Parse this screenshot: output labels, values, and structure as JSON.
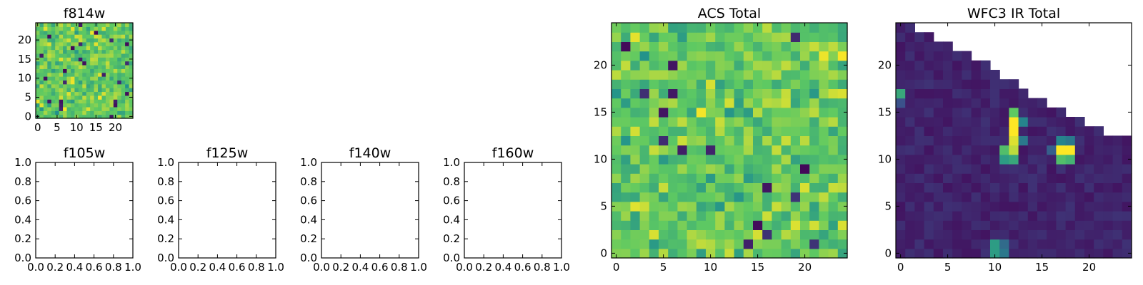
{
  "figure": {
    "colors": {
      "background": "#ffffff",
      "axes": "#000000",
      "viridis": [
        "#440154",
        "#3b528b",
        "#21918c",
        "#5ec962",
        "#fde725"
      ]
    }
  },
  "chart_data": [
    {
      "type": "heatmap",
      "title": "f814w",
      "grid_size": 25,
      "xlim": [
        -0.5,
        24.5
      ],
      "ylim": [
        -0.5,
        24.5
      ],
      "xticks": [
        0,
        5,
        10,
        15,
        20
      ],
      "yticks": [
        0,
        5,
        10,
        15,
        20
      ],
      "xtick_labels": [
        "0",
        "5",
        "10",
        "15",
        "20"
      ],
      "ytick_labels": [
        "0",
        "5",
        "10",
        "15",
        "20"
      ],
      "value_range": [
        0,
        1
      ],
      "pattern": "noise",
      "seed": 11
    },
    {
      "type": "empty",
      "title": "f105w",
      "xlim": [
        0,
        1
      ],
      "ylim": [
        0,
        1
      ],
      "xtick_labels": [
        "0.0",
        "0.2",
        "0.4",
        "0.6",
        "0.8",
        "1.0"
      ],
      "ytick_labels": [
        "0.0",
        "0.2",
        "0.4",
        "0.6",
        "0.8",
        "1.0"
      ]
    },
    {
      "type": "empty",
      "title": "f125w",
      "xlim": [
        0,
        1
      ],
      "ylim": [
        0,
        1
      ],
      "xtick_labels": [
        "0.0",
        "0.2",
        "0.4",
        "0.6",
        "0.8",
        "1.0"
      ],
      "ytick_labels": [
        "0.0",
        "0.2",
        "0.4",
        "0.6",
        "0.8",
        "1.0"
      ]
    },
    {
      "type": "empty",
      "title": "f140w",
      "xlim": [
        0,
        1
      ],
      "ylim": [
        0,
        1
      ],
      "xtick_labels": [
        "0.0",
        "0.2",
        "0.4",
        "0.6",
        "0.8",
        "1.0"
      ],
      "ytick_labels": [
        "0.0",
        "0.2",
        "0.4",
        "0.6",
        "0.8",
        "1.0"
      ]
    },
    {
      "type": "empty",
      "title": "f160w",
      "xlim": [
        0,
        1
      ],
      "ylim": [
        0,
        1
      ],
      "xtick_labels": [
        "0.0",
        "0.2",
        "0.4",
        "0.6",
        "0.8",
        "1.0"
      ],
      "ytick_labels": [
        "0.0",
        "0.2",
        "0.4",
        "0.6",
        "0.8",
        "1.0"
      ]
    },
    {
      "type": "heatmap",
      "title": "ACS Total",
      "grid_size": 25,
      "xlim": [
        -0.5,
        24.5
      ],
      "ylim": [
        -0.5,
        24.5
      ],
      "xticks": [
        0,
        5,
        10,
        15,
        20
      ],
      "yticks": [
        0,
        5,
        10,
        15,
        20
      ],
      "xtick_labels": [
        "0",
        "5",
        "10",
        "15",
        "20"
      ],
      "ytick_labels": [
        "0",
        "5",
        "10",
        "15",
        "20"
      ],
      "value_range": [
        0,
        1
      ],
      "pattern": "noise",
      "seed": 29
    },
    {
      "type": "heatmap",
      "title": "WFC3 IR Total",
      "grid_size": 25,
      "xlim": [
        -0.5,
        24.5
      ],
      "ylim": [
        -0.5,
        24.5
      ],
      "xticks": [
        0,
        5,
        10,
        15,
        20
      ],
      "yticks": [
        0,
        5,
        10,
        15,
        20
      ],
      "xtick_labels": [
        "0",
        "5",
        "10",
        "15",
        "20"
      ],
      "ytick_labels": [
        "0",
        "5",
        "10",
        "15",
        "20"
      ],
      "value_range": [
        0,
        1
      ],
      "pattern": "sources",
      "seed": 7,
      "baseline": 0.06,
      "masked_top_rows_start": [
        [
          24,
          2
        ],
        [
          23,
          4
        ],
        [
          22,
          6
        ],
        [
          21,
          8
        ],
        [
          20,
          10
        ],
        [
          19,
          11
        ],
        [
          18,
          13
        ],
        [
          17,
          14
        ],
        [
          16,
          16
        ],
        [
          15,
          18
        ],
        [
          14,
          20
        ],
        [
          13,
          22
        ]
      ],
      "sources": [
        {
          "x": 12,
          "y": 13,
          "value": 1.0
        },
        {
          "x": 12,
          "y": 14,
          "value": 1.0
        },
        {
          "x": 12,
          "y": 12,
          "value": 0.95
        },
        {
          "x": 12,
          "y": 11,
          "value": 0.9
        },
        {
          "x": 12,
          "y": 15,
          "value": 0.75
        },
        {
          "x": 11,
          "y": 10,
          "value": 0.55
        },
        {
          "x": 12,
          "y": 10,
          "value": 0.6
        },
        {
          "x": 11,
          "y": 11,
          "value": 0.7
        },
        {
          "x": 13,
          "y": 12,
          "value": 0.4
        },
        {
          "x": 13,
          "y": 14,
          "value": 0.45
        },
        {
          "x": 17,
          "y": 11,
          "value": 1.0
        },
        {
          "x": 18,
          "y": 11,
          "value": 1.0
        },
        {
          "x": 17,
          "y": 10,
          "value": 0.7
        },
        {
          "x": 18,
          "y": 10,
          "value": 0.65
        },
        {
          "x": 17,
          "y": 12,
          "value": 0.45
        },
        {
          "x": 18,
          "y": 12,
          "value": 0.4
        },
        {
          "x": 16,
          "y": 11,
          "value": 0.3
        },
        {
          "x": 10,
          "y": 0,
          "value": 0.55
        },
        {
          "x": 10,
          "y": 1,
          "value": 0.55
        },
        {
          "x": 11,
          "y": 0,
          "value": 0.4
        },
        {
          "x": 11,
          "y": 1,
          "value": 0.35
        },
        {
          "x": 0,
          "y": 17,
          "value": 0.6
        },
        {
          "x": 0,
          "y": 16,
          "value": 0.25
        }
      ]
    }
  ]
}
